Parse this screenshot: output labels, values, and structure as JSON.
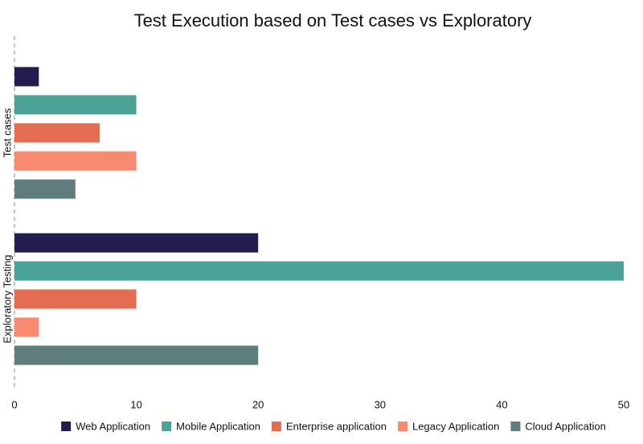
{
  "chart_data": {
    "type": "hbar",
    "title": "Test Execution based on Test cases vs Exploratory",
    "categories": [
      "Test cases",
      "Exploratory Testing"
    ],
    "series": [
      {
        "name": "Web Application",
        "color": "#221c4f",
        "values": [
          2,
          20
        ]
      },
      {
        "name": "Mobile Application",
        "color": "#4aa396",
        "values": [
          10,
          50
        ]
      },
      {
        "name": "Enterprise application",
        "color": "#e46c50",
        "values": [
          7,
          10
        ]
      },
      {
        "name": "Legacy Application",
        "color": "#f88a6f",
        "values": [
          10,
          2
        ]
      },
      {
        "name": "Cloud Application",
        "color": "#607d7e",
        "values": [
          5,
          20
        ]
      }
    ],
    "xlim": [
      0,
      50
    ],
    "xticks": [
      0,
      10,
      20,
      30,
      40,
      50
    ],
    "legend": "bottom"
  }
}
